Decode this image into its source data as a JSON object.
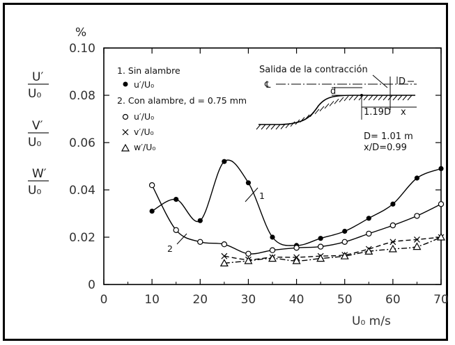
{
  "chart_data": {
    "type": "line",
    "y_unit": "%",
    "xlabel": "U₀ m/s",
    "ylabels": [
      "U′/U₀",
      "V′/U₀",
      "W′/U₀"
    ],
    "xlim": [
      0,
      70
    ],
    "ylim": [
      0,
      0.1
    ],
    "xticks": [
      "0",
      "10",
      "20",
      "30",
      "40",
      "50",
      "60",
      "70"
    ],
    "yticks": [
      "0",
      "0.02",
      "0.04",
      "0.06",
      "0.08",
      "0.10"
    ],
    "legend": {
      "group1": "1. Sin alambre",
      "group1_item": "u′/U₀",
      "group2": "2. Con alambre, d = 0.75 mm",
      "group2_items": [
        "u′/U₀",
        "v′/U₀",
        "w′/U₀"
      ]
    },
    "curve_labels": [
      "1",
      "2"
    ],
    "series": [
      {
        "name": "u′/U₀",
        "group": "1. Sin alambre",
        "marker": "filled-circle",
        "style": "solid",
        "x": [
          10,
          15,
          20,
          25,
          30,
          35,
          40,
          45,
          50,
          55,
          60,
          65,
          70
        ],
        "y": [
          0.031,
          0.036,
          0.027,
          0.052,
          0.043,
          0.02,
          0.0165,
          0.0195,
          0.0225,
          0.028,
          0.034,
          0.045,
          0.049
        ]
      },
      {
        "name": "u′/U₀",
        "group": "2. Con alambre, d = 0.75 mm",
        "marker": "open-circle",
        "style": "solid",
        "x": [
          10,
          15,
          20,
          25,
          30,
          35,
          40,
          45,
          50,
          55,
          60,
          65,
          70
        ],
        "y": [
          0.042,
          0.023,
          0.018,
          0.017,
          0.013,
          0.0145,
          0.0155,
          0.016,
          0.018,
          0.0215,
          0.025,
          0.029,
          0.034
        ]
      },
      {
        "name": "v′/U₀",
        "group": "2. Con alambre, d = 0.75 mm",
        "marker": "cross",
        "style": "dashed",
        "x": [
          25,
          30,
          35,
          40,
          45,
          50,
          55,
          60,
          65,
          70
        ],
        "y": [
          0.012,
          0.0105,
          0.0115,
          0.0115,
          0.012,
          0.0125,
          0.015,
          0.018,
          0.019,
          0.02
        ]
      },
      {
        "name": "w′/U₀",
        "group": "2. Con alambre, d = 0.75 mm",
        "marker": "open-triangle",
        "style": "dash-dot",
        "x": [
          25,
          30,
          35,
          40,
          45,
          50,
          55,
          60,
          65,
          70
        ],
        "y": [
          0.009,
          0.01,
          0.011,
          0.01,
          0.011,
          0.012,
          0.014,
          0.015,
          0.016,
          0.02
        ]
      }
    ],
    "inset": {
      "title": "Salida de la contracción",
      "centerline": "℄",
      "d_label": "d",
      "D_label": "D",
      "offset_label": "1.19D",
      "x_label": "x",
      "D_value": "D= 1.01 m",
      "ratio": "x/D=0.99"
    }
  }
}
